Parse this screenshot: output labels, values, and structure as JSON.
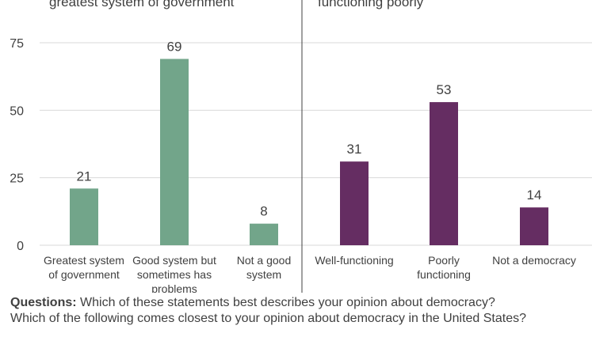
{
  "panels": [
    {
      "subtitle": "greatest system of government",
      "color": "#72a58a",
      "categories": [
        [
          "Greatest system",
          "of government"
        ],
        [
          "Good system but",
          "sometimes has",
          "problems"
        ],
        [
          "Not a good",
          "system"
        ]
      ],
      "values": [
        21,
        69,
        8
      ]
    },
    {
      "subtitle": "functioning poorly",
      "color": "#652d62",
      "categories": [
        [
          "Well-functioning"
        ],
        [
          "Poorly",
          "functioning"
        ],
        [
          "Not a democracy"
        ]
      ],
      "values": [
        31,
        53,
        14
      ]
    }
  ],
  "chart_data": {
    "type": "bar",
    "ylim": [
      0,
      75
    ],
    "yticks": [
      0,
      25,
      50,
      75
    ],
    "grid": true,
    "panels": [
      {
        "categories": [
          "Greatest system of government",
          "Good system but sometimes has problems",
          "Not a good system"
        ],
        "values": [
          21,
          69,
          8
        ]
      },
      {
        "categories": [
          "Well-functioning",
          "Poorly functioning",
          "Not a democracy"
        ],
        "values": [
          31,
          53,
          14
        ]
      }
    ]
  },
  "questions": {
    "label": "Questions:",
    "line1": "Which of these statements best describes your opinion about democracy?",
    "line2": "Which of the following comes closest to your opinion about democracy in the United States?"
  }
}
